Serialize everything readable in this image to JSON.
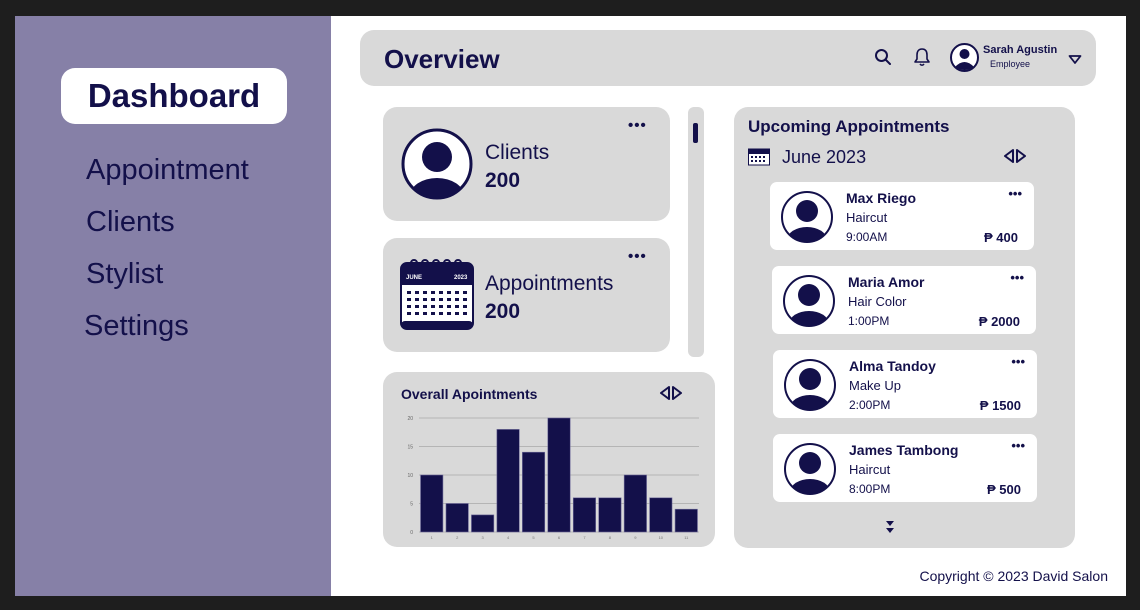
{
  "sidebar": {
    "items": [
      {
        "label": "Dashboard",
        "active": true
      },
      {
        "label": "Appointment"
      },
      {
        "label": "Clients"
      },
      {
        "label": "Stylist"
      },
      {
        "label": "Settings"
      }
    ]
  },
  "header": {
    "title": "Overview",
    "user": {
      "name": "Sarah Agustin",
      "role": "Employee"
    }
  },
  "stats": {
    "clients": {
      "label": "Clients",
      "value": "200"
    },
    "appointments": {
      "label": "Appointments",
      "value": "200"
    }
  },
  "calendar_icon": {
    "month": "JUNE",
    "year": "2023"
  },
  "chart": {
    "title": "Overall Apointments"
  },
  "chart_data": {
    "type": "bar",
    "title": "Overall Apointments",
    "categories": [
      "1",
      "2",
      "3",
      "4",
      "5",
      "6",
      "7",
      "8",
      "9",
      "10",
      "11"
    ],
    "values": [
      10,
      5,
      3,
      18,
      14,
      20,
      6,
      6,
      10,
      6,
      4
    ],
    "ylim": [
      0,
      20
    ],
    "yticks": [
      "0",
      "5",
      "10",
      "15",
      "20"
    ],
    "grid": true
  },
  "upcoming": {
    "title": "Upcoming Appointments",
    "month": "June 2023",
    "items": [
      {
        "name": "Max Riego",
        "service": "Haircut",
        "time": "9:00AM",
        "price": "₱ 400"
      },
      {
        "name": "Maria Amor",
        "service": "Hair Color",
        "time": "1:00PM",
        "price": "₱ 2000"
      },
      {
        "name": "Alma Tandoy",
        "service": "Make Up",
        "time": "2:00PM",
        "price": "₱ 1500"
      },
      {
        "name": "James Tambong",
        "service": "Haircut",
        "time": "8:00PM",
        "price": "₱ 500"
      }
    ]
  },
  "footer": {
    "copyright": "Copyright © 2023 David Salon"
  },
  "colors": {
    "primary": "#13104a",
    "sidebar": "#8680a7",
    "card": "#d9d9d9",
    "frame": "#1e1e1e"
  }
}
